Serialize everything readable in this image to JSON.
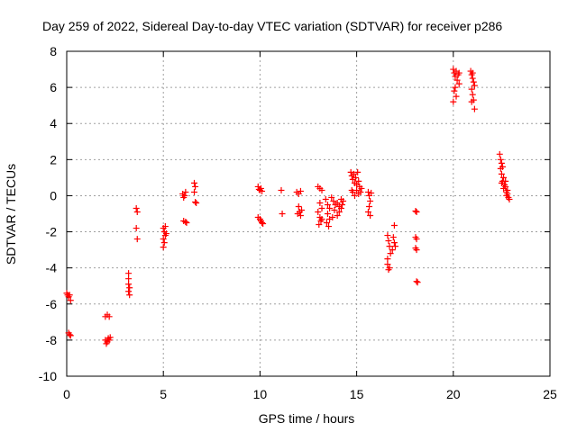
{
  "chart_data": {
    "type": "scatter",
    "title": "Day 259 of 2022, Sidereal Day-to-day VTEC variation (SDTVAR) for receiver p286",
    "xlabel": "GPS time / hours",
    "ylabel": "SDTVAR / TECUs",
    "xlim": [
      0,
      25
    ],
    "ylim": [
      -10,
      8
    ],
    "xticks": [
      0,
      5,
      10,
      15,
      20,
      25
    ],
    "xtick_labels": [
      "0",
      "5",
      "10",
      "15",
      "20",
      "25"
    ],
    "yticks": [
      -10,
      -8,
      -6,
      -4,
      -2,
      0,
      2,
      4,
      6,
      8
    ],
    "ytick_labels": [
      "-10",
      "-8",
      "-6",
      "-4",
      "-2",
      "0",
      "2",
      "4",
      "6",
      "8"
    ],
    "grid": true,
    "marker": "+",
    "color": "#ff0000",
    "series": [
      {
        "name": "SDTVAR",
        "points": [
          [
            0.0,
            -5.4
          ],
          [
            0.05,
            -5.5
          ],
          [
            0.1,
            -5.6
          ],
          [
            0.15,
            -5.5
          ],
          [
            0.2,
            -5.8
          ],
          [
            0.1,
            -7.6
          ],
          [
            0.15,
            -7.7
          ],
          [
            0.2,
            -7.75
          ],
          [
            2.0,
            -6.7
          ],
          [
            2.1,
            -6.6
          ],
          [
            2.2,
            -6.7
          ],
          [
            2.0,
            -8.0
          ],
          [
            2.05,
            -8.2
          ],
          [
            2.1,
            -8.1
          ],
          [
            2.15,
            -7.9
          ],
          [
            2.2,
            -8.0
          ],
          [
            2.25,
            -7.85
          ],
          [
            3.2,
            -4.3
          ],
          [
            3.2,
            -4.6
          ],
          [
            3.2,
            -4.9
          ],
          [
            3.25,
            -5.1
          ],
          [
            3.2,
            -5.3
          ],
          [
            3.25,
            -5.5
          ],
          [
            3.6,
            -0.7
          ],
          [
            3.65,
            -0.9
          ],
          [
            3.6,
            -1.8
          ],
          [
            3.65,
            -2.4
          ],
          [
            5.0,
            -1.8
          ],
          [
            5.05,
            -2.0
          ],
          [
            5.1,
            -2.2
          ],
          [
            5.0,
            -2.4
          ],
          [
            5.05,
            -2.6
          ],
          [
            5.0,
            -2.85
          ],
          [
            5.1,
            -1.7
          ],
          [
            5.15,
            -2.1
          ],
          [
            6.0,
            0.1
          ],
          [
            6.05,
            -0.1
          ],
          [
            6.1,
            0.0
          ],
          [
            6.15,
            0.2
          ],
          [
            6.05,
            -1.4
          ],
          [
            6.15,
            -1.45
          ],
          [
            6.2,
            -1.5
          ],
          [
            6.6,
            0.7
          ],
          [
            6.65,
            0.5
          ],
          [
            6.6,
            0.2
          ],
          [
            6.65,
            -0.35
          ],
          [
            6.7,
            -0.4
          ],
          [
            9.9,
            0.5
          ],
          [
            9.95,
            0.35
          ],
          [
            10.0,
            0.3
          ],
          [
            10.05,
            0.4
          ],
          [
            10.1,
            0.25
          ],
          [
            9.9,
            -1.2
          ],
          [
            10.0,
            -1.3
          ],
          [
            10.05,
            -1.4
          ],
          [
            10.1,
            -1.5
          ],
          [
            10.15,
            -1.55
          ],
          [
            11.1,
            0.3
          ],
          [
            11.15,
            -1.0
          ],
          [
            11.9,
            0.2
          ],
          [
            12.0,
            0.1
          ],
          [
            12.1,
            0.25
          ],
          [
            12.0,
            -0.6
          ],
          [
            12.05,
            -0.9
          ],
          [
            12.1,
            -1.1
          ],
          [
            11.95,
            -1.0
          ],
          [
            12.15,
            -0.8
          ],
          [
            13.0,
            0.5
          ],
          [
            13.1,
            0.4
          ],
          [
            13.2,
            0.3
          ],
          [
            13.1,
            -0.4
          ],
          [
            13.2,
            -0.7
          ],
          [
            13.0,
            -0.9
          ],
          [
            13.1,
            -1.2
          ],
          [
            13.15,
            -1.4
          ],
          [
            13.05,
            -1.6
          ],
          [
            13.2,
            -1.3
          ],
          [
            13.4,
            -0.2
          ],
          [
            13.5,
            -0.5
          ],
          [
            13.6,
            -0.7
          ],
          [
            13.5,
            -1.0
          ],
          [
            13.6,
            -1.3
          ],
          [
            13.45,
            -1.5
          ],
          [
            13.55,
            -1.7
          ],
          [
            13.7,
            -0.1
          ],
          [
            13.8,
            -0.3
          ],
          [
            13.9,
            -0.5
          ],
          [
            14.0,
            -0.4
          ],
          [
            14.1,
            -0.6
          ],
          [
            13.85,
            -0.8
          ],
          [
            14.0,
            -1.1
          ],
          [
            14.1,
            -0.9
          ],
          [
            13.75,
            -1.2
          ],
          [
            14.2,
            -0.2
          ],
          [
            14.25,
            -0.5
          ],
          [
            14.3,
            -0.3
          ],
          [
            14.2,
            -0.7
          ],
          [
            14.7,
            1.3
          ],
          [
            14.75,
            1.1
          ],
          [
            14.8,
            0.9
          ],
          [
            14.85,
            1.2
          ],
          [
            14.9,
            0.7
          ],
          [
            14.95,
            1.0
          ],
          [
            15.0,
            0.6
          ],
          [
            15.05,
            1.3
          ],
          [
            15.1,
            0.8
          ],
          [
            15.15,
            0.5
          ],
          [
            14.8,
            0.2
          ],
          [
            14.9,
            0.0
          ],
          [
            15.0,
            0.3
          ],
          [
            15.1,
            0.1
          ],
          [
            15.2,
            0.2
          ],
          [
            14.75,
            0.3
          ],
          [
            15.25,
            0.4
          ],
          [
            15.6,
            0.2
          ],
          [
            15.65,
            0.0
          ],
          [
            15.7,
            -0.3
          ],
          [
            15.65,
            -0.6
          ],
          [
            15.6,
            -0.9
          ],
          [
            15.7,
            -1.1
          ],
          [
            15.75,
            0.15
          ],
          [
            16.6,
            -2.2
          ],
          [
            16.65,
            -2.5
          ],
          [
            16.7,
            -2.8
          ],
          [
            16.75,
            -3.2
          ],
          [
            16.6,
            -3.8
          ],
          [
            16.65,
            -4.1
          ],
          [
            16.7,
            -4.0
          ],
          [
            16.6,
            -3.5
          ],
          [
            16.95,
            -1.65
          ],
          [
            16.9,
            -2.3
          ],
          [
            16.95,
            -2.6
          ],
          [
            17.0,
            -2.8
          ],
          [
            16.85,
            -3.0
          ],
          [
            18.05,
            -0.85
          ],
          [
            18.1,
            -0.9
          ],
          [
            18.05,
            -2.3
          ],
          [
            18.1,
            -2.4
          ],
          [
            18.05,
            -2.9
          ],
          [
            18.1,
            -3.0
          ],
          [
            18.1,
            -4.75
          ],
          [
            18.15,
            -4.8
          ],
          [
            20.0,
            7.0
          ],
          [
            20.05,
            6.8
          ],
          [
            20.1,
            6.6
          ],
          [
            20.15,
            6.9
          ],
          [
            20.2,
            6.4
          ],
          [
            20.25,
            6.7
          ],
          [
            20.3,
            6.2
          ],
          [
            20.1,
            6.0
          ],
          [
            20.05,
            5.8
          ],
          [
            20.15,
            5.5
          ],
          [
            20.0,
            5.2
          ],
          [
            20.3,
            6.8
          ],
          [
            20.9,
            6.9
          ],
          [
            20.95,
            6.7
          ],
          [
            21.0,
            6.5
          ],
          [
            21.05,
            6.3
          ],
          [
            21.1,
            6.1
          ],
          [
            20.95,
            5.9
          ],
          [
            21.0,
            5.6
          ],
          [
            21.05,
            5.3
          ],
          [
            20.95,
            5.2
          ],
          [
            21.1,
            4.8
          ],
          [
            21.0,
            6.8
          ],
          [
            22.4,
            2.3
          ],
          [
            22.45,
            2.0
          ],
          [
            22.5,
            1.8
          ],
          [
            22.45,
            1.5
          ],
          [
            22.55,
            1.6
          ],
          [
            22.5,
            1.2
          ],
          [
            22.6,
            1.0
          ],
          [
            22.55,
            0.8
          ],
          [
            22.65,
            0.6
          ],
          [
            22.6,
            0.4
          ],
          [
            22.7,
            0.5
          ],
          [
            22.75,
            0.2
          ],
          [
            22.8,
            0.1
          ],
          [
            22.75,
            0.0
          ],
          [
            22.85,
            -0.1
          ],
          [
            22.9,
            -0.2
          ],
          [
            22.8,
            0.3
          ],
          [
            22.7,
            0.8
          ],
          [
            22.5,
            0.7
          ]
        ]
      }
    ]
  }
}
